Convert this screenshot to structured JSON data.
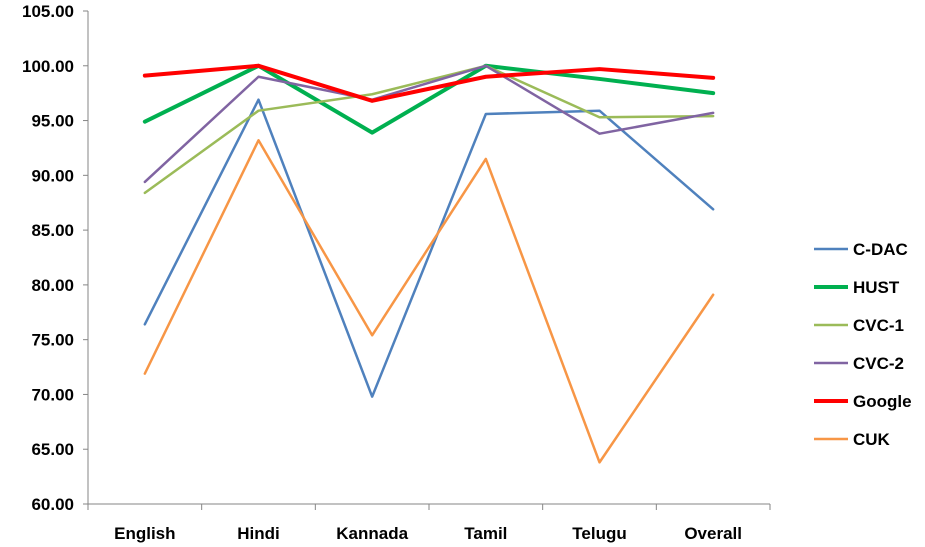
{
  "chart_data": {
    "type": "line",
    "title": "",
    "xlabel": "",
    "ylabel": "",
    "categories": [
      "English",
      "Hindi",
      "Kannada",
      "Tamil",
      "Telugu",
      "Overall"
    ],
    "ylim": [
      60,
      105
    ],
    "yticks": [
      "60.00",
      "65.00",
      "70.00",
      "75.00",
      "80.00",
      "85.00",
      "90.00",
      "95.00",
      "100.00",
      "105.00"
    ],
    "grid": false,
    "legend_position": "right",
    "series": [
      {
        "name": "C-DAC",
        "color": "#4f81bd",
        "width": 2.5,
        "values": [
          76.4,
          96.9,
          69.8,
          95.6,
          95.9,
          86.9
        ]
      },
      {
        "name": "HUST",
        "color": "#00b050",
        "width": 4,
        "values": [
          94.9,
          100.0,
          93.9,
          100.0,
          98.8,
          97.5
        ]
      },
      {
        "name": "CVC-1",
        "color": "#9bbb59",
        "width": 2.5,
        "values": [
          88.4,
          95.9,
          97.4,
          100.0,
          95.3,
          95.4
        ]
      },
      {
        "name": "CVC-2",
        "color": "#8064a2",
        "width": 2.5,
        "values": [
          89.4,
          99.0,
          96.9,
          100.0,
          93.8,
          95.7
        ]
      },
      {
        "name": "Google",
        "color": "#ff0000",
        "width": 4,
        "values": [
          99.1,
          100.0,
          96.8,
          99.0,
          99.7,
          98.9
        ]
      },
      {
        "name": "CUK",
        "color": "#f79646",
        "width": 2.5,
        "values": [
          71.9,
          93.2,
          75.4,
          91.5,
          63.8,
          79.1
        ]
      }
    ]
  }
}
